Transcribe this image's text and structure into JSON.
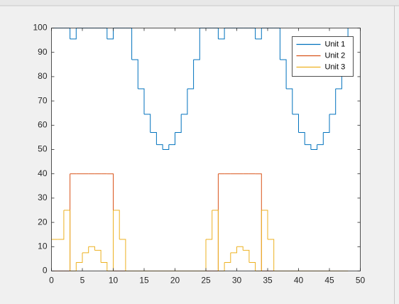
{
  "chart_data": {
    "type": "line",
    "step": "post",
    "x": [
      0,
      1,
      2,
      3,
      4,
      5,
      6,
      7,
      8,
      9,
      10,
      11,
      12,
      13,
      14,
      15,
      16,
      17,
      18,
      19,
      20,
      21,
      22,
      23,
      24,
      25,
      26,
      27,
      28,
      29,
      30,
      31,
      32,
      33,
      34,
      35,
      36,
      37,
      38,
      39,
      40,
      41,
      42,
      43,
      44,
      45,
      46,
      47,
      48
    ],
    "series": [
      {
        "name": "Unit 1",
        "color": "#0072bd",
        "values": [
          100,
          100,
          100,
          95.5,
          100,
          100,
          100,
          100,
          100,
          95.5,
          100,
          100,
          100,
          87,
          75,
          64.5,
          57,
          52,
          50,
          52,
          57,
          64.5,
          75,
          87,
          100,
          100,
          100,
          95.5,
          100,
          100,
          100,
          100,
          100,
          95.5,
          100,
          100,
          100,
          87,
          75,
          64.5,
          57,
          52,
          50,
          52,
          57,
          64.5,
          75,
          87,
          100
        ]
      },
      {
        "name": "Unit 2",
        "color": "#d95319",
        "values": [
          0,
          0,
          0,
          40,
          40,
          40,
          40,
          40,
          40,
          40,
          0,
          0,
          0,
          0,
          0,
          0,
          0,
          0,
          0,
          0,
          0,
          0,
          0,
          0,
          0,
          0,
          0,
          40,
          40,
          40,
          40,
          40,
          40,
          40,
          0,
          0,
          0,
          0,
          0,
          0,
          0,
          0,
          0,
          0,
          0,
          0,
          0,
          0,
          0
        ]
      },
      {
        "name": "Unit 3",
        "color": "#edb120",
        "values": [
          13,
          13,
          25,
          0,
          3.5,
          7.5,
          10,
          8.5,
          3.5,
          0,
          25,
          13,
          0,
          0,
          0,
          0,
          0,
          0,
          0,
          0,
          0,
          0,
          0,
          0,
          0,
          13,
          25,
          0,
          3.5,
          7.5,
          10,
          8.5,
          3.5,
          0,
          25,
          13,
          0,
          0,
          0,
          0,
          0,
          0,
          0,
          0,
          0,
          0,
          0,
          0,
          0
        ]
      }
    ],
    "xlim": [
      0,
      50
    ],
    "xticks": [
      0,
      5,
      10,
      15,
      20,
      25,
      30,
      35,
      40,
      45,
      50
    ],
    "ylim": [
      0,
      100
    ],
    "yticks": [
      0,
      10,
      20,
      30,
      40,
      50,
      60,
      70,
      80,
      90,
      100
    ],
    "legend": "top-right"
  }
}
